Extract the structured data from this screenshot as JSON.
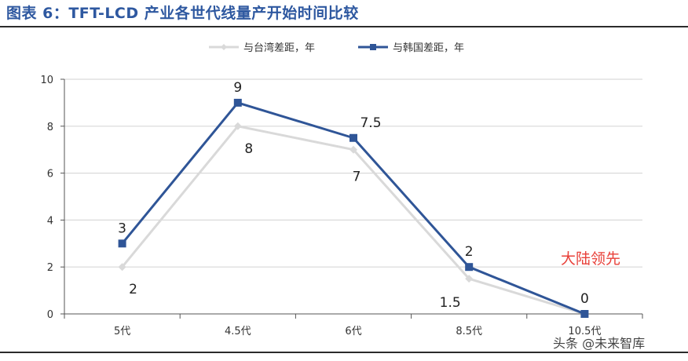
{
  "header": {
    "title": "图表 6：TFT-LCD 产业各世代线量产开始时间比较"
  },
  "watermark": "头条 @未来智库",
  "colors": {
    "taiwan": "#d9d9d9",
    "korea": "#2f5597",
    "annotation": "#e8413a",
    "grid": "#d9d9d9"
  },
  "chart_data": {
    "type": "line",
    "categories": [
      "5代",
      "4.5代",
      "6代",
      "8.5代",
      "10.5代"
    ],
    "series": [
      {
        "name": "与台湾差距，年",
        "values": [
          2,
          8,
          7,
          1.5,
          0
        ],
        "labels": [
          "2",
          "8",
          "7",
          "1.5",
          ""
        ],
        "color": "#d9d9d9",
        "marker": "diamond"
      },
      {
        "name": "与韩国差距，年",
        "values": [
          3,
          9,
          7.5,
          2,
          0
        ],
        "labels": [
          "3",
          "9",
          "7.5",
          "2",
          "0"
        ],
        "color": "#2f5597",
        "marker": "square"
      }
    ],
    "ylim": [
      0,
      10
    ],
    "yticks": [
      0,
      2,
      4,
      6,
      8,
      10
    ],
    "grid": true,
    "legend_position": "top-center",
    "annotation": "大陆领先"
  }
}
